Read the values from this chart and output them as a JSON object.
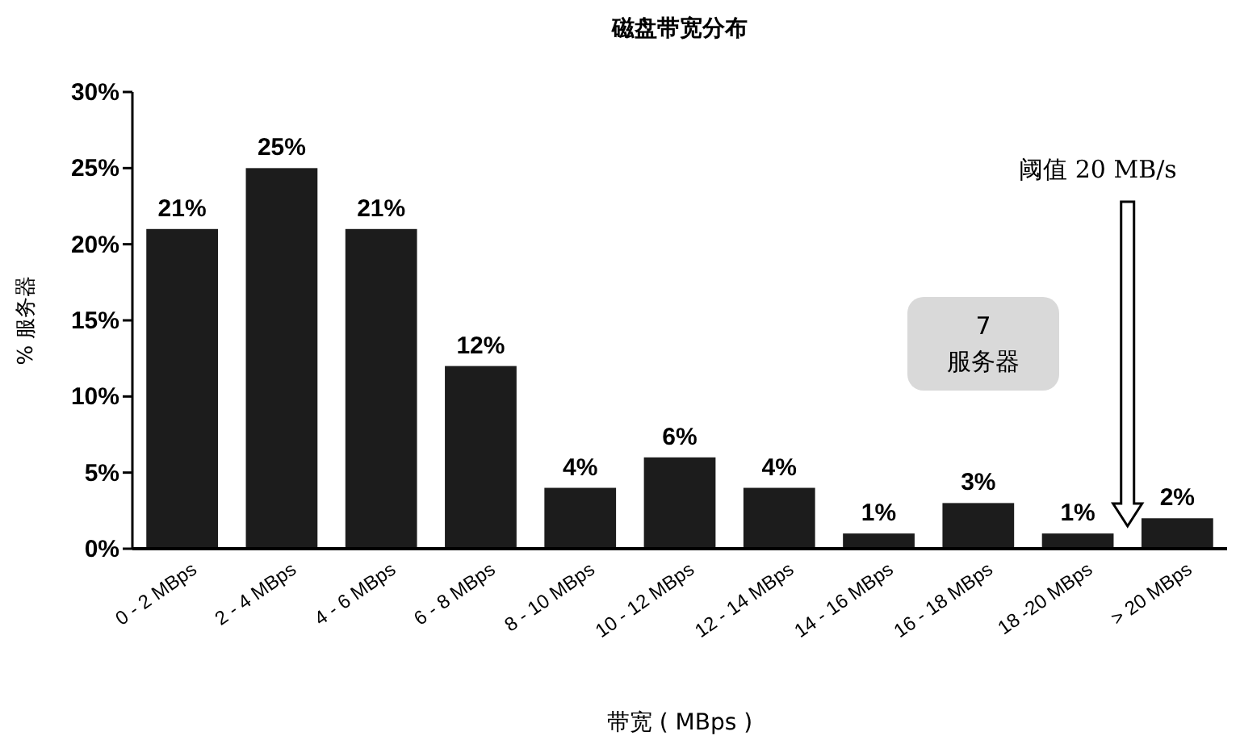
{
  "chart_data": {
    "type": "bar",
    "title": "磁盘带宽分布",
    "xlabel": "带宽 ( MBps )",
    "ylabel": "% 服务器",
    "categories": [
      "0 - 2 MBps",
      "2 - 4 MBps",
      "4 - 6 MBps",
      "6 - 8 MBps",
      "8 - 10 MBps",
      "10 - 12 MBps",
      "12 - 14 MBps",
      "14 - 16 MBps",
      "16 - 18 MBps",
      "18 -20 MBps",
      "> 20 MBps"
    ],
    "values": [
      21,
      25,
      21,
      12,
      4,
      6,
      4,
      1,
      3,
      1,
      2
    ],
    "value_labels": [
      "21%",
      "25%",
      "21%",
      "12%",
      "4%",
      "6%",
      "4%",
      "1%",
      "3%",
      "1%",
      "2%"
    ],
    "color": "#1c1c1c",
    "ylim": [
      0,
      30
    ],
    "yticks": [
      {
        "value": 0,
        "label": "0%"
      },
      {
        "value": 5,
        "label": "5%"
      },
      {
        "value": 10,
        "label": "10%"
      },
      {
        "value": 15,
        "label": "15%"
      },
      {
        "value": 20,
        "label": "20%"
      },
      {
        "value": 25,
        "label": "25%"
      },
      {
        "value": 30,
        "label": "30%"
      }
    ],
    "grid": false,
    "annotations": [
      "阈值 20 MB/s",
      "7\n服务器"
    ]
  }
}
